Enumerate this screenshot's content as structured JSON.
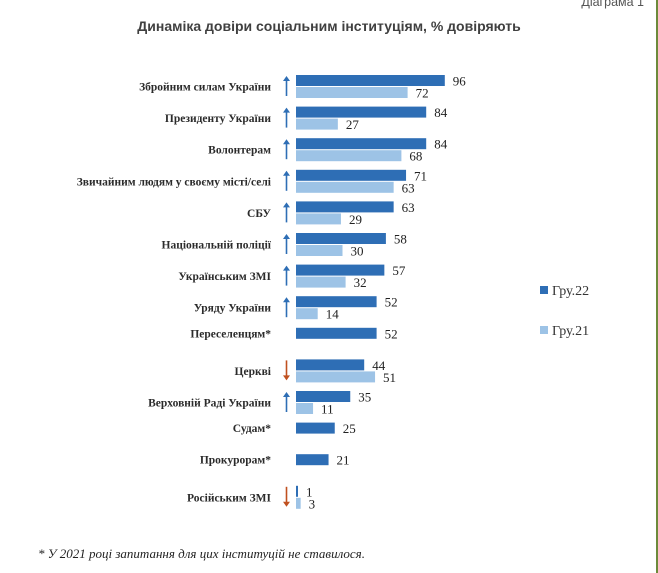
{
  "header": {
    "diagram_label": "Діаграма 1"
  },
  "footnote": "* У 2021 році запитання для цих інституцій не ставилося.",
  "chart_data": {
    "type": "bar",
    "orientation": "horizontal",
    "title": "Динаміка довіри соціальним інституціям, % довіряють",
    "categories": [
      "Збройним силам України",
      "Президенту України",
      "Волонтерам",
      "Звичайним людям у своєму місті/селі",
      "СБУ",
      "Національній поліції",
      "Українським ЗМІ",
      "Уряду України",
      "Переселенцям*",
      "Церкві",
      "Верховній Раді України",
      "Судам*",
      "Прокурорам*",
      "Російським ЗМІ"
    ],
    "series": [
      {
        "name": "Гру.22",
        "color": "#2e6eb5",
        "values": [
          96,
          84,
          84,
          71,
          63,
          58,
          57,
          52,
          52,
          44,
          35,
          25,
          21,
          1
        ]
      },
      {
        "name": "Гру.21",
        "color": "#9dc3e6",
        "values": [
          72,
          27,
          68,
          63,
          29,
          30,
          32,
          14,
          null,
          51,
          11,
          null,
          null,
          3
        ]
      }
    ],
    "trend_arrows": [
      "up",
      "up",
      "up",
      "up",
      "up",
      "up",
      "up",
      "up",
      "none",
      "down",
      "up",
      "none",
      "none",
      "down"
    ],
    "arrow_colors": {
      "up": "#2e6eb5",
      "down": "#c0501f"
    },
    "legend_placement": "right",
    "xlim": [
      0,
      100
    ],
    "grid": false
  }
}
